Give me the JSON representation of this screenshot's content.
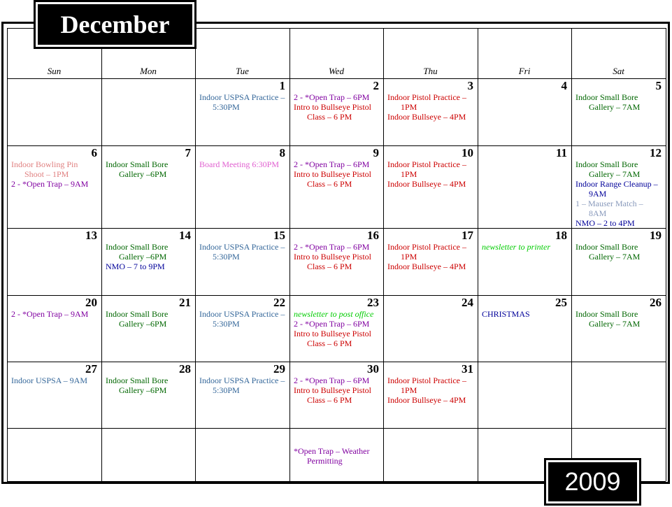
{
  "header": {
    "month": "December",
    "year": "2009"
  },
  "days": [
    "Sun",
    "Mon",
    "Tue",
    "Wed",
    "Thu",
    "Fri",
    "Sat"
  ],
  "weeks": [
    [
      {},
      {},
      {
        "day": 1,
        "events": [
          {
            "text": "Indoor USPSA Practice –5:30PM",
            "color": "#336699"
          }
        ]
      },
      {
        "day": 2,
        "events": [
          {
            "text": "2 - *Open Trap – 6PM",
            "color": "#8000a0"
          },
          {
            "text": "Intro to Bullseye Pistol Class – 6 PM",
            "color": "#cc0000"
          }
        ]
      },
      {
        "day": 3,
        "events": [
          {
            "text": "Indoor Pistol Practice – 1PM",
            "color": "#cc0000"
          },
          {
            "text": "Indoor Bullseye – 4PM",
            "color": "#cc0000"
          }
        ]
      },
      {
        "day": 4,
        "events": []
      },
      {
        "day": 5,
        "events": [
          {
            "text": "Indoor Small Bore Gallery – 7AM",
            "color": "#006600"
          }
        ]
      }
    ],
    [
      {
        "day": 6,
        "events": [
          {
            "text": "Indoor Bowling Pin Shoot – 1PM",
            "color": "#e08080"
          },
          {
            "text": "2 - *Open Trap – 9AM",
            "color": "#8000a0"
          }
        ]
      },
      {
        "day": 7,
        "events": [
          {
            "text": "Indoor Small Bore Gallery –6PM",
            "color": "#006600"
          }
        ]
      },
      {
        "day": 8,
        "events": [
          {
            "text": "Board Meeting 6:30PM",
            "color": "#e060d0"
          }
        ]
      },
      {
        "day": 9,
        "events": [
          {
            "text": "2 - *Open Trap – 6PM",
            "color": "#8000a0"
          },
          {
            "text": "Intro to Bullseye Pistol Class – 6 PM",
            "color": "#cc0000"
          }
        ]
      },
      {
        "day": 10,
        "events": [
          {
            "text": "Indoor Pistol Practice – 1PM",
            "color": "#cc0000"
          },
          {
            "text": "Indoor Bullseye – 4PM",
            "color": "#cc0000"
          }
        ]
      },
      {
        "day": 11,
        "events": []
      },
      {
        "day": 12,
        "events": [
          {
            "text": "Indoor Small Bore Gallery – 7AM",
            "color": "#006600"
          },
          {
            "text": "Indoor Range Cleanup – 9AM",
            "color": "#000099"
          },
          {
            "text": "1 – Mauser Match – 8AM",
            "color": "#8899bb"
          },
          {
            "text": "NMO – 2 to 4PM",
            "color": "#000099"
          }
        ]
      }
    ],
    [
      {
        "day": 13,
        "events": []
      },
      {
        "day": 14,
        "events": [
          {
            "text": "Indoor Small Bore Gallery –6PM",
            "color": "#006600"
          },
          {
            "text": "NMO – 7 to 9PM",
            "color": "#000099"
          }
        ]
      },
      {
        "day": 15,
        "events": [
          {
            "text": "Indoor USPSA Practice –5:30PM",
            "color": "#336699"
          }
        ]
      },
      {
        "day": 16,
        "events": [
          {
            "text": "2 - *Open Trap – 6PM",
            "color": "#8000a0"
          },
          {
            "text": "Intro to Bullseye Pistol Class – 6 PM",
            "color": "#cc0000"
          }
        ]
      },
      {
        "day": 17,
        "events": [
          {
            "text": "Indoor Pistol Practice – 1PM",
            "color": "#cc0000"
          },
          {
            "text": "Indoor Bullseye – 4PM",
            "color": "#cc0000"
          }
        ]
      },
      {
        "day": 18,
        "events": [
          {
            "text": "newsletter to printer",
            "color": "#00cc00",
            "style": "italic"
          }
        ]
      },
      {
        "day": 19,
        "events": [
          {
            "text": "Indoor Small Bore Gallery – 7AM",
            "color": "#006600"
          }
        ]
      }
    ],
    [
      {
        "day": 20,
        "events": [
          {
            "text": "2 - *Open Trap – 9AM",
            "color": "#8000a0"
          }
        ]
      },
      {
        "day": 21,
        "events": [
          {
            "text": "Indoor Small Bore Gallery –6PM",
            "color": "#006600"
          }
        ]
      },
      {
        "day": 22,
        "events": [
          {
            "text": "Indoor USPSA Practice –5:30PM",
            "color": "#336699"
          }
        ]
      },
      {
        "day": 23,
        "events": [
          {
            "text": "newsletter to post office",
            "color": "#00cc00",
            "style": "italic"
          },
          {
            "text": "2 - *Open Trap – 6PM",
            "color": "#8000a0"
          },
          {
            "text": "Intro to Bullseye Pistol Class – 6 PM",
            "color": "#cc0000"
          }
        ]
      },
      {
        "day": 24,
        "events": []
      },
      {
        "day": 25,
        "events": [
          {
            "text": "CHRISTMAS",
            "color": "#000099"
          }
        ]
      },
      {
        "day": 26,
        "events": [
          {
            "text": "Indoor Small Bore Gallery – 7AM",
            "color": "#006600"
          }
        ]
      }
    ],
    [
      {
        "day": 27,
        "events": [
          {
            "text": "Indoor USPSA – 9AM",
            "color": "#336699"
          }
        ]
      },
      {
        "day": 28,
        "events": [
          {
            "text": "Indoor Small Bore Gallery –6PM",
            "color": "#006600"
          }
        ]
      },
      {
        "day": 29,
        "events": [
          {
            "text": "Indoor USPSA Practice –5:30PM",
            "color": "#336699"
          }
        ]
      },
      {
        "day": 30,
        "events": [
          {
            "text": "2 - *Open Trap – 6PM",
            "color": "#8000a0"
          },
          {
            "text": "Intro to Bullseye Pistol Class – 6 PM",
            "color": "#cc0000"
          }
        ]
      },
      {
        "day": 31,
        "events": [
          {
            "text": "Indoor Pistol Practice – 1PM",
            "color": "#cc0000"
          },
          {
            "text": "Indoor Bullseye – 4PM",
            "color": "#cc0000"
          }
        ]
      },
      {},
      {}
    ],
    [
      {},
      {},
      {},
      {
        "events": [
          {
            "text": "*Open Trap – Weather Permitting",
            "color": "#8000a0"
          }
        ]
      },
      {},
      {},
      {}
    ]
  ]
}
